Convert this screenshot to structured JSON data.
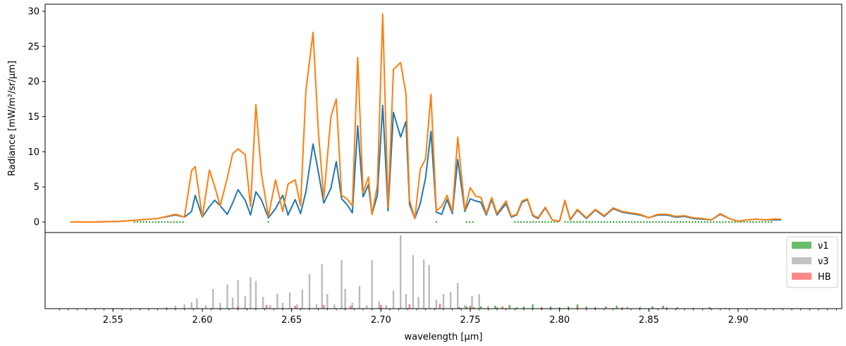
{
  "chart_data": [
    {
      "type": "line",
      "ylabel": "Radiance [mW/m²/sr/μm]",
      "xlim": [
        2.512,
        2.958
      ],
      "ylim": [
        -1.5,
        31
      ],
      "yticks": [
        0,
        5,
        10,
        15,
        20,
        25,
        30
      ],
      "grid": false,
      "series": [
        {
          "color": "#1f77b4",
          "x": [
            2.526,
            2.54,
            2.555,
            2.565,
            2.575,
            2.585,
            2.59,
            2.594,
            2.596,
            2.6,
            2.604,
            2.607,
            2.61,
            2.614,
            2.617,
            2.62,
            2.624,
            2.627,
            2.63,
            2.633,
            2.637,
            2.641,
            2.645,
            2.648,
            2.652,
            2.655,
            2.658,
            2.662,
            2.665,
            2.668,
            2.672,
            2.675,
            2.678,
            2.681,
            2.684,
            2.687,
            2.69,
            2.693,
            2.695,
            2.698,
            2.701,
            2.704,
            2.707,
            2.711,
            2.714,
            2.716,
            2.719,
            2.722,
            2.725,
            2.728,
            2.731,
            2.734,
            2.737,
            2.74,
            2.743,
            2.747,
            2.75,
            2.753,
            2.756,
            2.759,
            2.762,
            2.765,
            2.77,
            2.773,
            2.776,
            2.779,
            2.782,
            2.785,
            2.788,
            2.792,
            2.796,
            2.8,
            2.803,
            2.806,
            2.81,
            2.815,
            2.82,
            2.825,
            2.83,
            2.835,
            2.84,
            2.845,
            2.85,
            2.855,
            2.86,
            2.865,
            2.87,
            2.875,
            2.88,
            2.885,
            2.89,
            2.895,
            2.9,
            2.905,
            2.91,
            2.915,
            2.92,
            2.924
          ],
          "y": [
            0,
            0,
            0.1,
            0.3,
            0.5,
            1.0,
            0.7,
            1.5,
            3.8,
            0.7,
            2.2,
            3.1,
            2.3,
            1.1,
            2.7,
            4.6,
            3.1,
            1.0,
            4.3,
            3.2,
            0.6,
            1.9,
            3.8,
            1.0,
            3.2,
            1.2,
            4.3,
            11.1,
            7.1,
            2.7,
            4.8,
            8.6,
            3.3,
            2.5,
            1.3,
            13.7,
            3.6,
            5.3,
            1.1,
            3.8,
            16.6,
            1.6,
            15.6,
            12.1,
            14.3,
            2.5,
            0.5,
            2.6,
            6.3,
            12.9,
            1.4,
            1.1,
            3.2,
            1.2,
            8.9,
            1.5,
            3.3,
            3.0,
            2.8,
            1.0,
            3.2,
            1.0,
            2.6,
            0.7,
            1.0,
            2.8,
            3.2,
            0.9,
            0.5,
            2.0,
            0.3,
            0.1,
            3.0,
            0.3,
            1.7,
            0.5,
            1.7,
            0.8,
            1.9,
            1.4,
            1.2,
            1.0,
            0.6,
            1.0,
            1.0,
            0.7,
            0.8,
            0.5,
            0.4,
            0.3,
            1.1,
            0.5,
            0.1,
            0.3,
            0.4,
            0.3,
            0.3,
            0.3
          ]
        },
        {
          "color": "#ff7f0e",
          "x": [
            2.526,
            2.54,
            2.555,
            2.565,
            2.575,
            2.585,
            2.59,
            2.594,
            2.596,
            2.6,
            2.604,
            2.607,
            2.61,
            2.614,
            2.617,
            2.62,
            2.624,
            2.627,
            2.63,
            2.633,
            2.637,
            2.641,
            2.645,
            2.648,
            2.652,
            2.655,
            2.658,
            2.662,
            2.665,
            2.668,
            2.672,
            2.675,
            2.678,
            2.681,
            2.684,
            2.687,
            2.69,
            2.693,
            2.695,
            2.698,
            2.701,
            2.704,
            2.707,
            2.711,
            2.714,
            2.716,
            2.719,
            2.722,
            2.725,
            2.728,
            2.731,
            2.734,
            2.737,
            2.74,
            2.743,
            2.747,
            2.75,
            2.753,
            2.756,
            2.759,
            2.762,
            2.765,
            2.77,
            2.773,
            2.776,
            2.779,
            2.782,
            2.785,
            2.788,
            2.792,
            2.796,
            2.8,
            2.803,
            2.806,
            2.81,
            2.815,
            2.82,
            2.825,
            2.83,
            2.835,
            2.84,
            2.845,
            2.85,
            2.855,
            2.86,
            2.865,
            2.87,
            2.875,
            2.88,
            2.885,
            2.89,
            2.895,
            2.9,
            2.905,
            2.91,
            2.915,
            2.92,
            2.924
          ],
          "y": [
            0,
            0,
            0.1,
            0.3,
            0.5,
            1.1,
            0.7,
            7.3,
            7.9,
            0.7,
            7.4,
            5.0,
            2.3,
            6.3,
            9.7,
            10.4,
            9.6,
            2.2,
            16.7,
            7.0,
            0.8,
            6.0,
            1.5,
            5.4,
            6.0,
            2.3,
            18.7,
            27.0,
            12.7,
            3.4,
            15.0,
            17.5,
            3.8,
            3.3,
            2.3,
            23.4,
            4.2,
            6.4,
            1.1,
            5.2,
            29.6,
            2.1,
            21.7,
            22.7,
            18.3,
            3.1,
            0.5,
            7.5,
            9.0,
            18.2,
            1.6,
            2.2,
            3.8,
            1.5,
            12.1,
            1.7,
            4.9,
            3.7,
            3.5,
            1.2,
            3.5,
            1.2,
            3.0,
            0.8,
            1.1,
            3.0,
            3.3,
            1.0,
            0.6,
            2.1,
            0.3,
            0.1,
            3.1,
            0.4,
            1.8,
            0.6,
            1.8,
            0.9,
            2.0,
            1.5,
            1.3,
            1.1,
            0.6,
            1.1,
            1.1,
            0.8,
            0.9,
            0.6,
            0.5,
            0.3,
            1.2,
            0.5,
            0.1,
            0.3,
            0.4,
            0.3,
            0.4,
            0.4
          ]
        }
      ],
      "markers": {
        "color": "#2ca02c",
        "y": 0,
        "ranges": [
          [
            2.562,
            2.59
          ],
          [
            2.637,
            2.638
          ],
          [
            2.731,
            2.732
          ],
          [
            2.748,
            2.753
          ],
          [
            2.775,
            2.8
          ],
          [
            2.803,
            2.92
          ]
        ]
      }
    },
    {
      "type": "bar",
      "xlabel": "wavelength [μm]",
      "xticks": [
        "2.55",
        "2.60",
        "2.65",
        "2.70",
        "2.75",
        "2.80",
        "2.85",
        "2.90"
      ],
      "xtick_values": [
        2.55,
        2.6,
        2.65,
        2.7,
        2.75,
        2.8,
        2.85,
        2.9
      ],
      "yticks": [],
      "ylim": [
        0,
        1.0
      ],
      "legend": {
        "position": "top-right"
      },
      "series": [
        {
          "name": "ν1",
          "color": "#2ca02c",
          "x": [
            2.744,
            2.748,
            2.752,
            2.756,
            2.76,
            2.764,
            2.768,
            2.772,
            2.776,
            2.78,
            2.785,
            2.79,
            2.795,
            2.8,
            2.805,
            2.81,
            2.815,
            2.82,
            2.826,
            2.832,
            2.838,
            2.845,
            2.852,
            2.858,
            2.866,
            2.875,
            2.884,
            2.893
          ],
          "values": [
            0.02,
            0.03,
            0.02,
            0.03,
            0.02,
            0.04,
            0.02,
            0.05,
            0.02,
            0.03,
            0.06,
            0.02,
            0.03,
            0.02,
            0.03,
            0.06,
            0.03,
            0.02,
            0.03,
            0.04,
            0.02,
            0.02,
            0.03,
            0.04,
            0.02,
            0.01,
            0.02,
            0.01
          ]
        },
        {
          "name": "ν3",
          "color": "#aaaaaa",
          "x": [
            2.58,
            2.585,
            2.59,
            2.594,
            2.597,
            2.602,
            2.606,
            2.61,
            2.614,
            2.617,
            2.62,
            2.624,
            2.627,
            2.63,
            2.634,
            2.638,
            2.642,
            2.645,
            2.649,
            2.653,
            2.656,
            2.66,
            2.664,
            2.667,
            2.67,
            2.674,
            2.678,
            2.68,
            2.684,
            2.688,
            2.692,
            2.695,
            2.699,
            2.703,
            2.707,
            2.711,
            2.714,
            2.718,
            2.721,
            2.724,
            2.727,
            2.731,
            2.735,
            2.739,
            2.743,
            2.747,
            2.751,
            2.755,
            2.76,
            2.765
          ],
          "values": [
            0.02,
            0.04,
            0.06,
            0.09,
            0.14,
            0.05,
            0.27,
            0.08,
            0.33,
            0.15,
            0.39,
            0.17,
            0.43,
            0.38,
            0.16,
            0.05,
            0.2,
            0.08,
            0.22,
            0.06,
            0.26,
            0.47,
            0.06,
            0.61,
            0.2,
            0.06,
            0.66,
            0.27,
            0.08,
            0.31,
            0.05,
            0.66,
            0.1,
            0.05,
            0.25,
            1.0,
            0.2,
            0.73,
            0.16,
            0.67,
            0.6,
            0.12,
            0.2,
            0.23,
            0.35,
            0.05,
            0.17,
            0.2,
            0.04,
            0.02
          ]
        },
        {
          "name": "HB",
          "color": "#ff5555",
          "x": [
            2.62,
            2.636,
            2.652,
            2.668,
            2.683,
            2.7,
            2.716,
            2.733,
            2.75,
            2.768,
            2.79,
            2.81,
            2.835,
            2.86,
            2.884
          ],
          "values": [
            0.03,
            0.05,
            0.04,
            0.05,
            0.04,
            0.05,
            0.06,
            0.07,
            0.04,
            0.03,
            0.02,
            0.03,
            0.02,
            0.02,
            0.01
          ]
        }
      ]
    }
  ]
}
